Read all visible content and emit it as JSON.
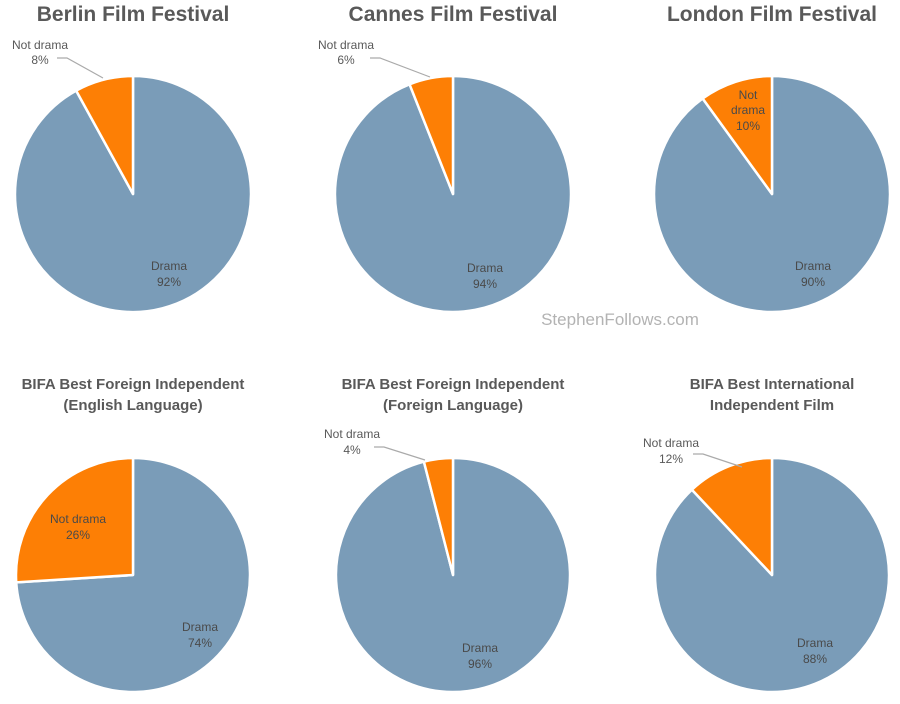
{
  "watermark": "StephenFollows.com",
  "colors": {
    "drama": "#7a9cb8",
    "not_drama": "#fd7f05",
    "leader": "#aaaaaa"
  },
  "chart_data": [
    {
      "type": "pie",
      "title_lines": [
        "Berlin Film Festival"
      ],
      "categories": [
        "Drama",
        "Not drama"
      ],
      "values": [
        92,
        8
      ],
      "labels": [
        "92%",
        "8%"
      ]
    },
    {
      "type": "pie",
      "title_lines": [
        "Cannes Film Festival"
      ],
      "categories": [
        "Drama",
        "Not drama"
      ],
      "values": [
        94,
        6
      ],
      "labels": [
        "94%",
        "6%"
      ]
    },
    {
      "type": "pie",
      "title_lines": [
        "London Film Festival"
      ],
      "categories": [
        "Drama",
        "Not drama"
      ],
      "values": [
        90,
        10
      ],
      "labels": [
        "90%",
        "10%"
      ]
    },
    {
      "type": "pie",
      "title_lines": [
        "BIFA Best Foreign Independent",
        "(English Language)"
      ],
      "categories": [
        "Drama",
        "Not drama"
      ],
      "values": [
        74,
        26
      ],
      "labels": [
        "74%",
        "26%"
      ]
    },
    {
      "type": "pie",
      "title_lines": [
        "BIFA Best Foreign Independent",
        "(Foreign Language)"
      ],
      "categories": [
        "Drama",
        "Not drama"
      ],
      "values": [
        96,
        4
      ],
      "labels": [
        "96%",
        "4%"
      ]
    },
    {
      "type": "pie",
      "title_lines": [
        "BIFA Best International",
        "Independent Film"
      ],
      "categories": [
        "Drama",
        "Not drama"
      ],
      "values": [
        88,
        12
      ],
      "labels": [
        "88%",
        "12%"
      ]
    }
  ]
}
